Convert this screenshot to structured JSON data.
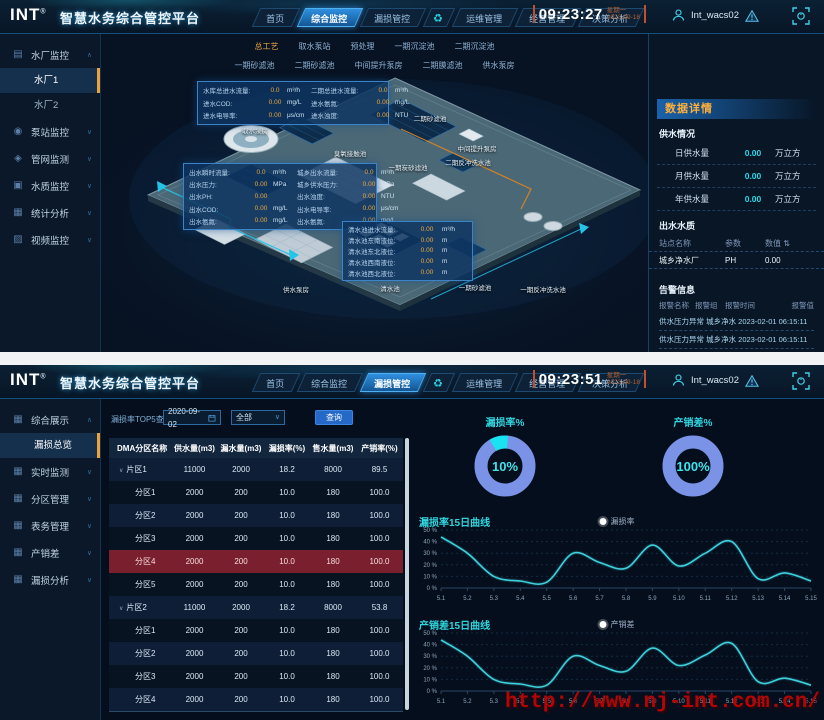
{
  "brand": {
    "logo": "INT",
    "reg": "®",
    "title": "智慧水务综合管控平台"
  },
  "nav": {
    "items": [
      "首页",
      "综合监控",
      "漏损管控",
      "运维管理",
      "经营管理",
      "决策分析"
    ],
    "recycle_icon": "♻"
  },
  "watermark": "http://www.nj-int.com.cn/",
  "screens": {
    "top": {
      "active_nav": "综合监控",
      "clock": {
        "time": "09:23:27",
        "week": "星期一",
        "date": "2023-09-18"
      },
      "user": {
        "name": "Int_wacs02"
      },
      "sidebar": {
        "items": [
          {
            "label": "水厂监控",
            "icon": "plant-icon",
            "expanded": true,
            "children": [
              {
                "label": "水厂1",
                "active": true
              },
              {
                "label": "水厂2",
                "active": false
              }
            ]
          },
          {
            "label": "泵站监控",
            "icon": "pump-icon"
          },
          {
            "label": "管网监测",
            "icon": "pipe-icon"
          },
          {
            "label": "水质监控",
            "icon": "quality-icon"
          },
          {
            "label": "统计分析",
            "icon": "stats-icon"
          },
          {
            "label": "视频监控",
            "icon": "video-icon"
          }
        ]
      },
      "process_tabs": {
        "active": "总工艺",
        "row1": [
          "总工艺",
          "取水泵站",
          "预处理",
          "一期沉淀池",
          "二期沉淀池"
        ],
        "row2": [
          "一期砂滤池",
          "二期砂滤池",
          "中间提升泵房",
          "二期膜滤池",
          "供水泵房"
        ]
      },
      "plant_labels": [
        "取水泵房",
        "臭氧接触池",
        "二期砂滤池",
        "中间提升泵房",
        "二期反冲洗水池",
        "一期炭砂滤池",
        "供水泵房",
        "清水池",
        "一期砂滤池",
        "一期反冲洗水池"
      ],
      "panels": {
        "intake": {
          "rows": [
            [
              "水库总进水流量:",
              "0.0",
              "m³/h",
              "二期总进水流量:",
              "0.0",
              "m³/h"
            ],
            [
              "进水COD:",
              "0.00",
              "mg/L",
              "进水氨氮:",
              "0.00",
              "mg/L"
            ],
            [
              "进水电导率:",
              "0.00",
              "μs/cm",
              "进水浊度:",
              "0.00",
              "NTU"
            ]
          ]
        },
        "outlet": {
          "rows": [
            [
              "出水瞬时流量:",
              "0.0",
              "m³/h",
              "城乡出水流量:",
              "0.0",
              "m³/h"
            ],
            [
              "出水压力:",
              "0.00",
              "MPa",
              "城乡供水压力:",
              "0.00",
              "MPa"
            ],
            [
              "出水PH:",
              "0.00",
              "",
              "出水浊度:",
              "0.00",
              "NTU"
            ],
            [
              "出水COD:",
              "0.00",
              "mg/L",
              "出水电导率:",
              "0.00",
              "μs/cm"
            ],
            [
              "出水氨氮:",
              "0.00",
              "mg/L",
              "出水氨氮:",
              "0.00",
              "mg/L"
            ]
          ]
        },
        "clearwell": {
          "rows": [
            [
              "清水池进水流量:",
              "0.00",
              "m³/h"
            ],
            [
              "清水池东南液位:",
              "0.00",
              "m"
            ],
            [
              "清水池东北液位:",
              "0.00",
              "m"
            ],
            [
              "清水池西南液位:",
              "0.00",
              "m"
            ],
            [
              "清水池西北液位:",
              "0.00",
              "m"
            ]
          ]
        }
      },
      "detail": {
        "title": "数据详情",
        "supply": {
          "title": "供水情况",
          "rows": [
            [
              "日供水量",
              "0.00",
              "万立方"
            ],
            [
              "月供水量",
              "0.00",
              "万立方"
            ],
            [
              "年供水量",
              "0.00",
              "万立方"
            ]
          ]
        },
        "quality": {
          "title": "出水水质",
          "headers": [
            "站点名称",
            "参数",
            "数值"
          ],
          "sort_icon": "⇅",
          "rows": [
            [
              "城乡净水厂",
              "PH",
              "0.00"
            ]
          ]
        },
        "alarm": {
          "title": "告警信息",
          "headers": [
            "报警名称",
            "报警组",
            "报警时间",
            "报警值"
          ],
          "rows": [
            "供水压力异常 城乡净水 2023-02-01 06:15:11",
            "供水压力异常 城乡净水 2023-02-01 06:15:11"
          ]
        }
      }
    },
    "bottom": {
      "active_nav": "漏损管控",
      "clock": {
        "time": "09:23:51",
        "week": "星期一",
        "date": "2023-09-18"
      },
      "user": {
        "name": "Int_wacs02"
      },
      "sidebar": {
        "items": [
          {
            "label": "综合展示",
            "icon": "grid-icon",
            "expanded": true,
            "children": [
              {
                "label": "漏损总览",
                "active": true
              }
            ]
          },
          {
            "label": "实时监测",
            "icon": "grid-icon"
          },
          {
            "label": "分区管理",
            "icon": "grid-icon"
          },
          {
            "label": "表务管理",
            "icon": "grid-icon"
          },
          {
            "label": "产销差",
            "icon": "grid-icon"
          },
          {
            "label": "漏损分析",
            "icon": "grid-icon"
          }
        ]
      },
      "filter": {
        "label": "漏损率TOP5查询",
        "date": "2020-09-02",
        "select": "全部",
        "button": "查询"
      },
      "table": {
        "headers": [
          "DMA分区名称",
          "供水量(m3)",
          "漏水量(m3)",
          "漏损率(%)",
          "售水量(m3)",
          "产销率(%)"
        ],
        "rows": [
          {
            "name": "片区1",
            "group": true,
            "highlight": false,
            "values": [
              "11000",
              "2000",
              "18.2",
              "8000",
              "89.5"
            ]
          },
          {
            "name": "分区1",
            "group": false,
            "highlight": false,
            "values": [
              "2000",
              "200",
              "10.0",
              "180",
              "100.0"
            ]
          },
          {
            "name": "分区2",
            "group": false,
            "highlight": false,
            "values": [
              "2000",
              "200",
              "10.0",
              "180",
              "100.0"
            ]
          },
          {
            "name": "分区3",
            "group": false,
            "highlight": false,
            "values": [
              "2000",
              "200",
              "10.0",
              "180",
              "100.0"
            ]
          },
          {
            "name": "分区4",
            "group": false,
            "highlight": true,
            "values": [
              "2000",
              "200",
              "10.0",
              "180",
              "100.0"
            ]
          },
          {
            "name": "分区5",
            "group": false,
            "highlight": false,
            "values": [
              "2000",
              "200",
              "10.0",
              "180",
              "100.0"
            ]
          },
          {
            "name": "片区2",
            "group": true,
            "highlight": false,
            "values": [
              "11000",
              "2000",
              "18.2",
              "8000",
              "53.8"
            ]
          },
          {
            "name": "分区1",
            "group": false,
            "highlight": false,
            "values": [
              "2000",
              "200",
              "10.0",
              "180",
              "100.0"
            ]
          },
          {
            "name": "分区2",
            "group": false,
            "highlight": false,
            "values": [
              "2000",
              "200",
              "10.0",
              "180",
              "100.0"
            ]
          },
          {
            "name": "分区3",
            "group": false,
            "highlight": false,
            "values": [
              "2000",
              "200",
              "10.0",
              "180",
              "100.0"
            ]
          },
          {
            "name": "分区4",
            "group": false,
            "highlight": false,
            "values": [
              "2000",
              "200",
              "10.0",
              "180",
              "100.0"
            ]
          }
        ]
      }
    }
  },
  "chart_data": [
    {
      "type": "pie",
      "id": "donut1",
      "title": "漏损率%",
      "labels": [
        "漏损率",
        "其余"
      ],
      "values": [
        10,
        90
      ],
      "center_text": "10%",
      "colors": [
        "#19e3f2",
        "#7b93e6"
      ]
    },
    {
      "type": "pie",
      "id": "donut2",
      "title": "产销差%",
      "labels": [
        "产销差"
      ],
      "values": [
        100
      ],
      "center_text": "100%",
      "colors": [
        "#7b93e6"
      ]
    },
    {
      "type": "line",
      "id": "line1",
      "title": "漏损率15日曲线",
      "legend": "漏损率",
      "x": [
        "5.1",
        "5.2",
        "5.3",
        "5.4",
        "5.5",
        "5.6",
        "5.7",
        "5.8",
        "5.9",
        "5.10",
        "5.11",
        "5.12",
        "5.13",
        "5.14",
        "5.15"
      ],
      "values": [
        44,
        30,
        10,
        6,
        5,
        30,
        22,
        17,
        37,
        19,
        30,
        40,
        8,
        13,
        6
      ],
      "ylim": [
        0,
        50
      ],
      "yticks": [
        "0 %",
        "10 %",
        "20 %",
        "30 %",
        "40 %",
        "50 %"
      ],
      "line_color": "#3fd0dd",
      "grid": true,
      "legend_position": "top-center"
    },
    {
      "type": "line",
      "id": "line2",
      "title": "产销差15日曲线",
      "legend": "产销差",
      "x": [
        "5.1",
        "5.2",
        "5.3",
        "5.4",
        "5.5",
        "5.6",
        "5.7",
        "5.8",
        "5.9",
        "5.10",
        "5.11",
        "5.12",
        "5.13",
        "5.14",
        "5.15"
      ],
      "values": [
        44,
        30,
        10,
        6,
        5,
        30,
        22,
        17,
        37,
        22,
        31,
        41,
        8,
        11,
        5
      ],
      "ylim": [
        0,
        50
      ],
      "yticks": [
        "0 %",
        "10 %",
        "20 %",
        "30 %",
        "40 %",
        "50 %"
      ],
      "line_color": "#3fd0dd",
      "grid": true,
      "legend_position": "top-center"
    }
  ]
}
